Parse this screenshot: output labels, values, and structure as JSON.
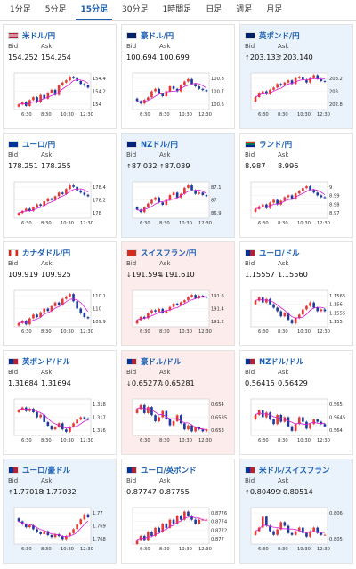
{
  "tabs": [
    {
      "label": "1分足",
      "active": false
    },
    {
      "label": "5分足",
      "active": false
    },
    {
      "label": "15分足",
      "active": true
    },
    {
      "label": "30分足",
      "active": false
    },
    {
      "label": "1時間足",
      "active": false
    },
    {
      "label": "日足",
      "active": false
    },
    {
      "label": "週足",
      "active": false
    },
    {
      "label": "月足",
      "active": false
    }
  ],
  "labels": {
    "bid": "Bid",
    "ask": "Ask"
  },
  "colors": {
    "link": "#1a5fb4",
    "up_candle": "#e53935",
    "down_candle": "#1e3a9e",
    "ma_line": "#d81bd8",
    "highlight_up": "#eaf3fb",
    "highlight_down": "#fdecec"
  },
  "cards": [
    {
      "pair": "米ドル/円",
      "flag": "flag-us-icon",
      "bid": "154.252",
      "ask": "154.254",
      "arrow": "",
      "highlight": "none",
      "y_ticks": [
        "154.4",
        "154.2",
        "154"
      ],
      "x_ticks": [
        "6:30",
        "8:30",
        "10:30",
        "12:30"
      ],
      "chart_data": {
        "type": "candlestick",
        "title": "米ドル/円",
        "ylim": [
          153.95,
          154.45
        ],
        "ma_trend": "up",
        "close_series": [
          154.02,
          154.05,
          154.0,
          154.08,
          154.12,
          154.05,
          154.15,
          154.1,
          154.18,
          154.22,
          154.15,
          154.28,
          154.32,
          154.35,
          154.4,
          154.38,
          154.34,
          154.3,
          154.28,
          154.25
        ]
      }
    },
    {
      "pair": "豪ドル/円",
      "flag": "flag-au-icon",
      "bid": "100.694",
      "ask": "100.699",
      "arrow": "",
      "highlight": "none",
      "y_ticks": [
        "100.8",
        "100.7",
        "100.6"
      ],
      "x_ticks": [
        "6:30",
        "8:30",
        "10:30",
        "12:30"
      ],
      "chart_data": {
        "type": "candlestick",
        "title": "豪ドル/円",
        "ylim": [
          100.55,
          100.85
        ],
        "ma_trend": "up",
        "close_series": [
          100.62,
          100.6,
          100.63,
          100.65,
          100.7,
          100.72,
          100.68,
          100.66,
          100.7,
          100.74,
          100.72,
          100.7,
          100.75,
          100.78,
          100.8,
          100.76,
          100.74,
          100.72,
          100.71,
          100.7
        ]
      }
    },
    {
      "pair": "英ポンド/円",
      "flag": "flag-gb-icon",
      "bid": "203.133",
      "ask": "203.140",
      "arrow": "↑",
      "highlight": "up",
      "y_ticks": [
        "203.2",
        "203",
        "202.8"
      ],
      "x_ticks": [
        "6:30",
        "8:30",
        "10:30",
        "12:30"
      ],
      "chart_data": {
        "type": "candlestick",
        "title": "英ポンド/円",
        "ylim": [
          202.75,
          203.25
        ],
        "ma_trend": "up",
        "close_series": [
          202.92,
          202.98,
          203.0,
          202.96,
          203.02,
          203.05,
          203.1,
          203.08,
          203.12,
          203.15,
          203.1,
          203.18,
          203.2,
          203.16,
          203.12,
          203.18,
          203.22,
          203.17,
          203.14,
          203.13
        ]
      }
    },
    {
      "pair": "ユーロ/円",
      "flag": "flag-eu-icon",
      "bid": "178.251",
      "ask": "178.255",
      "arrow": "",
      "highlight": "none",
      "y_ticks": [
        "178.4",
        "178.2",
        "178"
      ],
      "x_ticks": [
        "6:30",
        "8:30",
        "10:30",
        "12:30"
      ],
      "chart_data": {
        "type": "candlestick",
        "title": "ユーロ/円",
        "ylim": [
          177.95,
          178.45
        ],
        "ma_trend": "up",
        "close_series": [
          178.02,
          178.05,
          178.08,
          178.05,
          178.1,
          178.14,
          178.12,
          178.18,
          178.22,
          178.2,
          178.25,
          178.3,
          178.28,
          178.35,
          178.4,
          178.38,
          178.33,
          178.3,
          178.27,
          178.25
        ]
      }
    },
    {
      "pair": "NZドル/円",
      "flag": "flag-nz-icon",
      "bid": "87.032",
      "ask": "87.039",
      "arrow": "↑",
      "highlight": "up",
      "y_ticks": [
        "87.1",
        "87",
        "86.9"
      ],
      "x_ticks": [
        "6:30",
        "8:30",
        "10:30",
        "12:30"
      ],
      "chart_data": {
        "type": "candlestick",
        "title": "NZドル/円",
        "ylim": [
          86.85,
          87.15
        ],
        "ma_trend": "up",
        "close_series": [
          86.92,
          86.9,
          86.94,
          86.97,
          87.0,
          87.02,
          86.98,
          86.96,
          87.0,
          87.04,
          87.06,
          87.02,
          87.05,
          87.1,
          87.12,
          87.08,
          87.05,
          87.06,
          87.04,
          87.03
        ]
      }
    },
    {
      "pair": "ランド/円",
      "flag": "flag-za-icon",
      "bid": "8.987",
      "ask": "8.996",
      "arrow": "",
      "highlight": "none",
      "y_ticks": [
        "9",
        "8.99",
        "8.98",
        "8.97"
      ],
      "x_ticks": [
        "6:30",
        "8:30",
        "10:30",
        "12:30"
      ],
      "chart_data": {
        "type": "candlestick",
        "title": "ランド/円",
        "ylim": [
          8.965,
          9.005
        ],
        "ma_trend": "up",
        "close_series": [
          8.975,
          8.978,
          8.98,
          8.976,
          8.982,
          8.985,
          8.98,
          8.984,
          8.988,
          8.99,
          8.986,
          8.992,
          8.995,
          8.998,
          9.0,
          8.996,
          8.993,
          8.99,
          8.988,
          8.987
        ]
      }
    },
    {
      "pair": "カナダドル/円",
      "flag": "flag-ca-icon",
      "bid": "109.919",
      "ask": "109.925",
      "arrow": "",
      "highlight": "none",
      "y_ticks": [
        "110.1",
        "110",
        "109.9"
      ],
      "x_ticks": [
        "6:30",
        "8:30",
        "10:30",
        "12:30"
      ],
      "chart_data": {
        "type": "candlestick",
        "title": "カナダドル/円",
        "ylim": [
          109.85,
          110.15
        ],
        "ma_trend": "up",
        "close_series": [
          109.88,
          109.9,
          109.87,
          109.92,
          109.95,
          109.93,
          109.97,
          110.0,
          109.98,
          110.02,
          110.05,
          110.03,
          110.08,
          110.1,
          110.12,
          110.06,
          110.0,
          109.96,
          109.93,
          109.92
        ]
      }
    },
    {
      "pair": "スイスフラン/円",
      "flag": "flag-ch-icon",
      "bid": "191.594",
      "ask": "191.610",
      "arrow": "↓",
      "highlight": "down",
      "y_ticks": [
        "191.6",
        "191.4",
        "191.2"
      ],
      "x_ticks": [
        "6:30",
        "8:30",
        "10:30",
        "12:30"
      ],
      "chart_data": {
        "type": "candlestick",
        "title": "スイスフラン/円",
        "ylim": [
          191.15,
          191.7
        ],
        "ma_trend": "up",
        "close_series": [
          191.25,
          191.3,
          191.28,
          191.35,
          191.4,
          191.38,
          191.42,
          191.36,
          191.4,
          191.45,
          191.5,
          191.48,
          191.52,
          191.55,
          191.6,
          191.63,
          191.58,
          191.62,
          191.6,
          191.59
        ]
      }
    },
    {
      "pair": "ユーロ/ドル",
      "flag": "flag-eu-us-icon",
      "bid": "1.15557",
      "ask": "1.15560",
      "arrow": "",
      "highlight": "none",
      "y_ticks": [
        "1.1565",
        "1.156",
        "1.1555",
        "1.155"
      ],
      "x_ticks": [
        "6:30",
        "8:30",
        "10:30",
        "12:30"
      ],
      "chart_data": {
        "type": "candlestick",
        "title": "ユーロ/ドル",
        "ylim": [
          1.1547,
          1.1568
        ],
        "ma_trend": "down",
        "close_series": [
          1.1562,
          1.1564,
          1.1561,
          1.1563,
          1.156,
          1.1558,
          1.1556,
          1.1553,
          1.1555,
          1.1551,
          1.1549,
          1.1552,
          1.1554,
          1.1557,
          1.1559,
          1.1561,
          1.1558,
          1.1556,
          1.1557,
          1.1556
        ]
      }
    },
    {
      "pair": "英ポンド/ドル",
      "flag": "flag-gb-us-icon",
      "bid": "1.31684",
      "ask": "1.31694",
      "arrow": "",
      "highlight": "none",
      "y_ticks": [
        "1.318",
        "1.317",
        "1.316"
      ],
      "x_ticks": [
        "6:30",
        "8:30",
        "10:30",
        "12:30"
      ],
      "chart_data": {
        "type": "candlestick",
        "title": "英ポンド/ドル",
        "ylim": [
          1.3155,
          1.3185
        ],
        "ma_trend": "down",
        "close_series": [
          1.3176,
          1.3178,
          1.3175,
          1.3177,
          1.3174,
          1.317,
          1.3172,
          1.3166,
          1.3163,
          1.316,
          1.3162,
          1.3165,
          1.316,
          1.3158,
          1.3162,
          1.3165,
          1.3168,
          1.317,
          1.3169,
          1.3168
        ]
      }
    },
    {
      "pair": "豪ドル/ドル",
      "flag": "flag-au-us-icon",
      "bid": "0.65277",
      "ask": "0.65281",
      "arrow": "↓",
      "highlight": "down",
      "y_ticks": [
        "0.654",
        "0.6535",
        "0.653"
      ],
      "x_ticks": [
        "6:30",
        "8:30",
        "10:30",
        "12:30"
      ],
      "chart_data": {
        "type": "candlestick",
        "title": "豪ドル/ドル",
        "ylim": [
          0.6525,
          0.6543
        ],
        "ma_trend": "down",
        "close_series": [
          0.6538,
          0.654,
          0.6536,
          0.6539,
          0.6535,
          0.6532,
          0.6534,
          0.6537,
          0.6533,
          0.653,
          0.6532,
          0.6535,
          0.6531,
          0.6528,
          0.653,
          0.6527,
          0.6529,
          0.6528,
          0.6527,
          0.6528
        ]
      }
    },
    {
      "pair": "NZドル/ドル",
      "flag": "flag-nz-us-icon",
      "bid": "0.56415",
      "ask": "0.56429",
      "arrow": "",
      "highlight": "none",
      "y_ticks": [
        "0.565",
        "0.5645",
        "0.564"
      ],
      "x_ticks": [
        "6:30",
        "8:30",
        "10:30",
        "12:30"
      ],
      "chart_data": {
        "type": "candlestick",
        "title": "NZドル/ドル",
        "ylim": [
          0.5637,
          0.5653
        ],
        "ma_trend": "down",
        "close_series": [
          0.5646,
          0.5648,
          0.5645,
          0.5647,
          0.5644,
          0.5642,
          0.5646,
          0.5643,
          0.5645,
          0.5641,
          0.5639,
          0.5642,
          0.5645,
          0.5643,
          0.564,
          0.5642,
          0.5644,
          0.5643,
          0.5642,
          0.5641
        ]
      }
    },
    {
      "pair": "ユーロ/豪ドル",
      "flag": "flag-eu-au-icon",
      "bid": "1.77018",
      "ask": "1.77032",
      "arrow": "↑",
      "highlight": "up",
      "y_ticks": [
        "1.77",
        "1.769",
        "1.768"
      ],
      "x_ticks": [
        "6:30",
        "8:30",
        "10:30",
        "12:30"
      ],
      "chart_data": {
        "type": "candlestick",
        "title": "ユーロ/豪ドル",
        "ylim": [
          1.7675,
          1.7712
        ],
        "ma_trend": "down",
        "close_series": [
          1.7698,
          1.7695,
          1.7692,
          1.7694,
          1.769,
          1.7687,
          1.7685,
          1.7688,
          1.7684,
          1.7682,
          1.7685,
          1.7683,
          1.768,
          1.7683,
          1.7686,
          1.769,
          1.7695,
          1.77,
          1.7705,
          1.7702
        ]
      }
    },
    {
      "pair": "ユーロ/英ポンド",
      "flag": "flag-eu-gb-icon",
      "bid": "0.87747",
      "ask": "0.87755",
      "arrow": "",
      "highlight": "none",
      "y_ticks": [
        "0.8776",
        "0.8774",
        "0.8772",
        "0.877"
      ],
      "x_ticks": [
        "6:30",
        "8:30",
        "10:30",
        "12:30"
      ],
      "chart_data": {
        "type": "candlestick",
        "title": "ユーロ/英ポンド",
        "ylim": [
          0.8769,
          0.8778
        ],
        "ma_trend": "up",
        "close_series": [
          0.877,
          0.8771,
          0.877,
          0.8772,
          0.8771,
          0.8773,
          0.8772,
          0.8774,
          0.8773,
          0.8775,
          0.8774,
          0.8776,
          0.8775,
          0.8777,
          0.8776,
          0.8775,
          0.8774,
          0.8775,
          0.8775,
          0.8775
        ]
      }
    },
    {
      "pair": "米ドル/スイスフラン",
      "flag": "flag-us-ch-icon",
      "bid": "0.80499",
      "ask": "0.80514",
      "arrow": "↑",
      "highlight": "up",
      "y_ticks": [
        "0.806",
        "0.805"
      ],
      "x_ticks": [
        "6:30",
        "8:30",
        "10:30",
        "12:30"
      ],
      "chart_data": {
        "type": "candlestick",
        "title": "米ドル/スイスフラン",
        "ylim": [
          0.8045,
          0.8065
        ],
        "ma_trend": "flat",
        "close_series": [
          0.8052,
          0.8054,
          0.806,
          0.8055,
          0.8052,
          0.805,
          0.8053,
          0.8057,
          0.8055,
          0.8051,
          0.805,
          0.8052,
          0.8054,
          0.8051,
          0.8049,
          0.8052,
          0.8054,
          0.8051,
          0.805,
          0.805
        ]
      }
    }
  ]
}
